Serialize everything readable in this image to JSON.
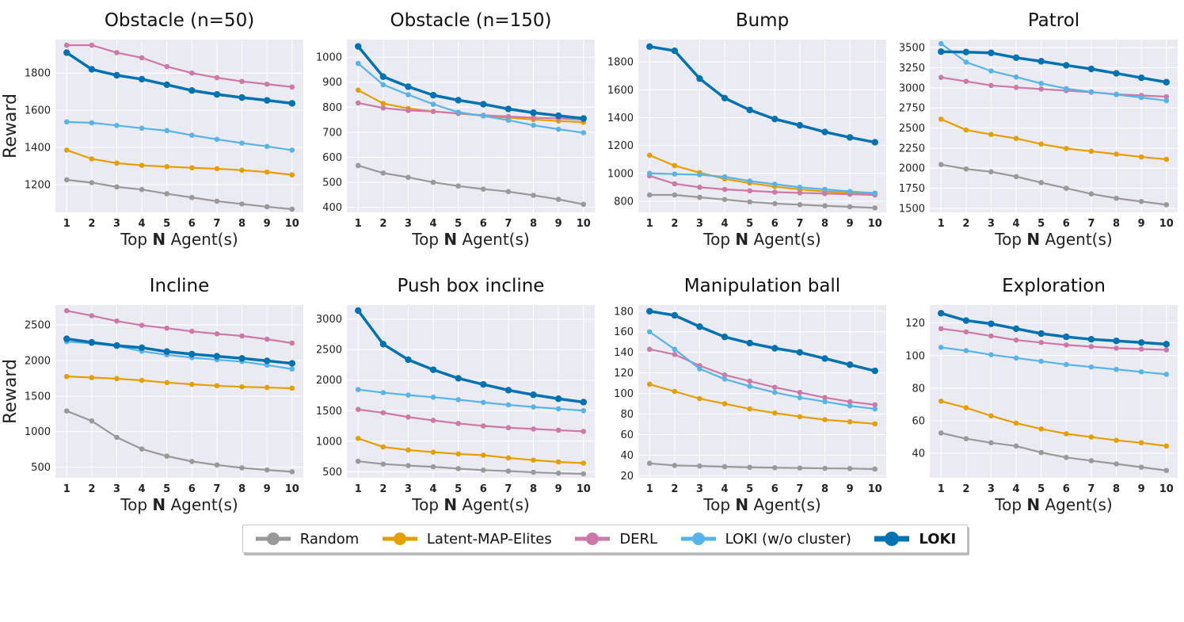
{
  "figure": {
    "ylabel": "Reward",
    "xlabel_prefix": "Top ",
    "xlabel_bold": "N",
    "xlabel_suffix": " Agent(s)"
  },
  "legend": [
    {
      "name": "Random",
      "color": "#999999"
    },
    {
      "name": "Latent-MAP-Elites",
      "color": "#E69F00"
    },
    {
      "name": "DERL",
      "color": "#CC79A7"
    },
    {
      "name": "LOKI (w/o cluster)",
      "color": "#56B4E9"
    },
    {
      "name": "LOKI",
      "color": "#0072B2"
    }
  ],
  "chart_data": [
    {
      "type": "line",
      "title": "Obstacle (n=50)",
      "x": [
        1,
        2,
        3,
        4,
        5,
        6,
        7,
        8,
        9,
        10
      ],
      "xticks": [
        "1",
        "2",
        "3",
        "4",
        "5",
        "6",
        "7",
        "8",
        "9",
        "10"
      ],
      "ylim": [
        1050,
        1980
      ],
      "yticks": [
        1200,
        1400,
        1600,
        1800
      ],
      "ytick_labels": [
        "1200",
        "1400",
        "1600",
        "1800"
      ],
      "series": [
        {
          "name": "Random",
          "values": [
            1225,
            1210,
            1187,
            1173,
            1150,
            1130,
            1110,
            1095,
            1080,
            1067
          ]
        },
        {
          "name": "Latent-MAP-Elites",
          "values": [
            1385,
            1338,
            1315,
            1303,
            1296,
            1290,
            1285,
            1277,
            1267,
            1252
          ]
        },
        {
          "name": "DERL",
          "values": [
            1950,
            1950,
            1910,
            1882,
            1835,
            1800,
            1775,
            1755,
            1740,
            1725
          ]
        },
        {
          "name": "LOKI (w/o cluster)",
          "values": [
            1537,
            1532,
            1518,
            1503,
            1490,
            1465,
            1443,
            1423,
            1405,
            1385
          ]
        },
        {
          "name": "LOKI",
          "values": [
            1910,
            1820,
            1788,
            1767,
            1737,
            1706,
            1685,
            1668,
            1653,
            1637
          ]
        }
      ]
    },
    {
      "type": "line",
      "title": "Obstacle (n=150)",
      "x": [
        1,
        2,
        3,
        4,
        5,
        6,
        7,
        8,
        9,
        10
      ],
      "xticks": [
        "1",
        "2",
        "3",
        "4",
        "5",
        "6",
        "7",
        "8",
        "9",
        "10"
      ],
      "ylim": [
        380,
        1070
      ],
      "yticks": [
        400,
        500,
        600,
        700,
        800,
        900,
        1000
      ],
      "ytick_labels": [
        "400",
        "500",
        "600",
        "700",
        "800",
        "900",
        "1000"
      ],
      "series": [
        {
          "name": "Random",
          "values": [
            567,
            537,
            520,
            500,
            485,
            473,
            463,
            448,
            432,
            412
          ]
        },
        {
          "name": "Latent-MAP-Elites",
          "values": [
            868,
            815,
            795,
            783,
            775,
            766,
            758,
            751,
            745,
            740
          ]
        },
        {
          "name": "DERL",
          "values": [
            817,
            797,
            787,
            783,
            775,
            768,
            763,
            758,
            755,
            750
          ]
        },
        {
          "name": "LOKI (w/o cluster)",
          "values": [
            975,
            890,
            850,
            812,
            780,
            765,
            748,
            728,
            712,
            698
          ]
        },
        {
          "name": "LOKI",
          "values": [
            1043,
            922,
            882,
            848,
            828,
            812,
            793,
            778,
            766,
            755
          ]
        }
      ]
    },
    {
      "type": "line",
      "title": "Bump",
      "x": [
        1,
        2,
        3,
        4,
        5,
        6,
        7,
        8,
        9,
        10
      ],
      "xticks": [
        "1",
        "2",
        "3",
        "4",
        "5",
        "6",
        "7",
        "8",
        "9",
        "10"
      ],
      "ylim": [
        720,
        1960
      ],
      "yticks": [
        800,
        1000,
        1200,
        1400,
        1600,
        1800
      ],
      "ytick_labels": [
        "800",
        "1000",
        "1200",
        "1400",
        "1600",
        "1800"
      ],
      "series": [
        {
          "name": "Random",
          "values": [
            845,
            845,
            828,
            812,
            795,
            783,
            775,
            767,
            760,
            752
          ]
        },
        {
          "name": "Latent-MAP-Elites",
          "values": [
            1130,
            1055,
            1005,
            960,
            930,
            905,
            885,
            870,
            860,
            852
          ]
        },
        {
          "name": "DERL",
          "values": [
            982,
            925,
            900,
            885,
            875,
            865,
            860,
            855,
            850,
            845
          ]
        },
        {
          "name": "LOKI (w/o cluster)",
          "values": [
            1000,
            995,
            990,
            975,
            945,
            922,
            900,
            885,
            870,
            858
          ]
        },
        {
          "name": "LOKI",
          "values": [
            1910,
            1880,
            1680,
            1540,
            1455,
            1390,
            1345,
            1297,
            1258,
            1223
          ]
        }
      ]
    },
    {
      "type": "line",
      "title": "Patrol",
      "x": [
        1,
        2,
        3,
        4,
        5,
        6,
        7,
        8,
        9,
        10
      ],
      "xticks": [
        "1",
        "2",
        "3",
        "4",
        "5",
        "6",
        "7",
        "8",
        "9",
        "10"
      ],
      "ylim": [
        1450,
        3600
      ],
      "yticks": [
        1500,
        1750,
        2000,
        2250,
        2500,
        2750,
        3000,
        3250,
        3500
      ],
      "ytick_labels": [
        "1500",
        "1750",
        "2000",
        "2250",
        "2500",
        "2750",
        "3000",
        "3250",
        "3500"
      ],
      "series": [
        {
          "name": "Random",
          "values": [
            2045,
            1990,
            1955,
            1895,
            1820,
            1750,
            1680,
            1625,
            1585,
            1545
          ]
        },
        {
          "name": "Latent-MAP-Elites",
          "values": [
            2610,
            2475,
            2420,
            2370,
            2300,
            2245,
            2210,
            2175,
            2140,
            2110
          ]
        },
        {
          "name": "DERL",
          "values": [
            3130,
            3080,
            3030,
            3005,
            2985,
            2965,
            2945,
            2920,
            2905,
            2890
          ]
        },
        {
          "name": "LOKI (w/o cluster)",
          "values": [
            3550,
            3320,
            3210,
            3135,
            3055,
            2990,
            2950,
            2915,
            2880,
            2840
          ]
        },
        {
          "name": "LOKI",
          "values": [
            3450,
            3445,
            3435,
            3375,
            3330,
            3280,
            3235,
            3180,
            3125,
            3070
          ]
        }
      ]
    },
    {
      "type": "line",
      "title": "Incline",
      "x": [
        1,
        2,
        3,
        4,
        5,
        6,
        7,
        8,
        9,
        10
      ],
      "xticks": [
        "1",
        "2",
        "3",
        "4",
        "5",
        "6",
        "7",
        "8",
        "9",
        "10"
      ],
      "ylim": [
        350,
        2780
      ],
      "yticks": [
        500,
        1000,
        1500,
        2000,
        2500
      ],
      "ytick_labels": [
        "500",
        "1000",
        "1500",
        "2000",
        "2500"
      ],
      "series": [
        {
          "name": "Random",
          "values": [
            1290,
            1150,
            920,
            755,
            655,
            580,
            530,
            490,
            460,
            435
          ]
        },
        {
          "name": "Latent-MAP-Elites",
          "values": [
            1775,
            1760,
            1745,
            1720,
            1690,
            1665,
            1645,
            1630,
            1620,
            1610
          ]
        },
        {
          "name": "DERL",
          "values": [
            2700,
            2630,
            2555,
            2495,
            2455,
            2410,
            2375,
            2345,
            2300,
            2245
          ]
        },
        {
          "name": "LOKI (w/o cluster)",
          "values": [
            2265,
            2240,
            2205,
            2130,
            2080,
            2040,
            2010,
            1985,
            1935,
            1880
          ]
        },
        {
          "name": "LOKI",
          "values": [
            2305,
            2255,
            2210,
            2180,
            2125,
            2090,
            2060,
            2030,
            1995,
            1960
          ]
        }
      ]
    },
    {
      "type": "line",
      "title": "Push box incline",
      "x": [
        1,
        2,
        3,
        4,
        5,
        6,
        7,
        8,
        9,
        10
      ],
      "xticks": [
        "1",
        "2",
        "3",
        "4",
        "5",
        "6",
        "7",
        "8",
        "9",
        "10"
      ],
      "ylim": [
        400,
        3230
      ],
      "yticks": [
        500,
        1000,
        1500,
        2000,
        2500,
        3000
      ],
      "ytick_labels": [
        "500",
        "1000",
        "1500",
        "2000",
        "2500",
        "3000"
      ],
      "series": [
        {
          "name": "Random",
          "values": [
            670,
            625,
            600,
            580,
            550,
            525,
            510,
            490,
            475,
            465
          ]
        },
        {
          "name": "Latent-MAP-Elites",
          "values": [
            1045,
            905,
            855,
            820,
            790,
            770,
            725,
            690,
            660,
            640
          ]
        },
        {
          "name": "DERL",
          "values": [
            1520,
            1465,
            1395,
            1340,
            1290,
            1250,
            1220,
            1200,
            1180,
            1160
          ]
        },
        {
          "name": "LOKI (w/o cluster)",
          "values": [
            1845,
            1795,
            1755,
            1720,
            1680,
            1635,
            1595,
            1560,
            1530,
            1500
          ]
        },
        {
          "name": "LOKI",
          "values": [
            3140,
            2590,
            2335,
            2170,
            2030,
            1930,
            1835,
            1760,
            1695,
            1640
          ]
        }
      ]
    },
    {
      "type": "line",
      "title": "Manipulation ball",
      "x": [
        1,
        2,
        3,
        4,
        5,
        6,
        7,
        8,
        9,
        10
      ],
      "xticks": [
        "1",
        "2",
        "3",
        "4",
        "5",
        "6",
        "7",
        "8",
        "9",
        "10"
      ],
      "ylim": [
        18,
        186
      ],
      "yticks": [
        20,
        40,
        60,
        80,
        100,
        120,
        140,
        160,
        180
      ],
      "ytick_labels": [
        "20",
        "40",
        "60",
        "80",
        "100",
        "120",
        "140",
        "160",
        "180"
      ],
      "series": [
        {
          "name": "Random",
          "values": [
            32,
            30,
            29.5,
            28.8,
            28.2,
            27.8,
            27.5,
            27.2,
            27,
            26.5
          ]
        },
        {
          "name": "Latent-MAP-Elites",
          "values": [
            109,
            102,
            95,
            90,
            85,
            81,
            77.5,
            74.5,
            72.5,
            70.5
          ]
        },
        {
          "name": "DERL",
          "values": [
            143,
            138,
            127,
            118,
            112,
            106,
            101,
            96,
            92,
            89
          ]
        },
        {
          "name": "LOKI (w/o cluster)",
          "values": [
            160,
            143,
            124,
            114,
            107,
            101,
            96,
            92,
            88,
            85
          ]
        },
        {
          "name": "LOKI",
          "values": [
            180,
            176,
            165,
            155,
            149,
            144,
            140,
            134,
            128,
            122
          ]
        }
      ]
    },
    {
      "type": "line",
      "title": "Exploration",
      "x": [
        1,
        2,
        3,
        4,
        5,
        6,
        7,
        8,
        9,
        10
      ],
      "xticks": [
        "1",
        "2",
        "3",
        "4",
        "5",
        "6",
        "7",
        "8",
        "9",
        "10"
      ],
      "ylim": [
        25,
        131
      ],
      "yticks": [
        40,
        60,
        80,
        100,
        120
      ],
      "ytick_labels": [
        "40",
        "60",
        "80",
        "100",
        "120"
      ],
      "series": [
        {
          "name": "Random",
          "values": [
            52.5,
            49,
            46.5,
            44.5,
            40.5,
            37.5,
            35.5,
            33.5,
            31.5,
            29.5
          ]
        },
        {
          "name": "Latent-MAP-Elites",
          "values": [
            72,
            68,
            63,
            58.5,
            55,
            52,
            50,
            48,
            46.5,
            44.5
          ]
        },
        {
          "name": "DERL",
          "values": [
            116.5,
            114.5,
            112,
            109.5,
            108,
            106.5,
            105.5,
            104.5,
            104,
            103.5
          ]
        },
        {
          "name": "LOKI (w/o cluster)",
          "values": [
            105,
            103,
            100.5,
            98.5,
            96.5,
            94.5,
            93,
            91.5,
            90,
            88.5
          ]
        },
        {
          "name": "LOKI",
          "values": [
            126,
            121.5,
            119.5,
            116.5,
            113.5,
            111.5,
            110,
            109,
            108,
            107
          ]
        }
      ]
    }
  ]
}
